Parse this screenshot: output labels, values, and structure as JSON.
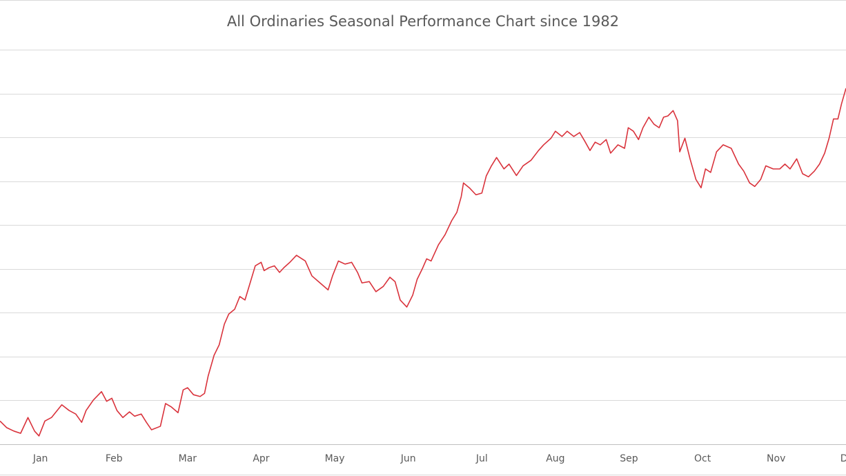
{
  "chart_data": {
    "type": "line",
    "title": "All Ordinaries Seasonal Performance Chart since 1982",
    "color": "#d9323b",
    "grid": true,
    "ytick_labels": false,
    "xlim": [
      -0.05,
      11.45
    ],
    "ylim": [
      0,
      9
    ],
    "yticks": [
      0,
      1,
      2,
      3,
      4,
      5,
      6,
      7,
      8,
      9
    ],
    "xticks": [
      {
        "value": 0.5,
        "label": "Jan"
      },
      {
        "value": 1.5,
        "label": "Feb"
      },
      {
        "value": 2.5,
        "label": "Mar"
      },
      {
        "value": 3.5,
        "label": "Apr"
      },
      {
        "value": 4.5,
        "label": "May"
      },
      {
        "value": 5.5,
        "label": "Jun"
      },
      {
        "value": 6.5,
        "label": "Jul"
      },
      {
        "value": 7.5,
        "label": "Aug"
      },
      {
        "value": 8.5,
        "label": "Sep"
      },
      {
        "value": 9.5,
        "label": "Oct"
      },
      {
        "value": 10.5,
        "label": "Nov"
      },
      {
        "value": 11.5,
        "label": "Dec"
      }
    ],
    "x": [
      -0.05,
      0.04,
      0.14,
      0.23,
      0.33,
      0.42,
      0.48,
      0.56,
      0.65,
      0.79,
      0.89,
      0.98,
      1.06,
      1.12,
      1.22,
      1.33,
      1.4,
      1.47,
      1.54,
      1.62,
      1.71,
      1.78,
      1.87,
      1.94,
      2.01,
      2.13,
      2.2,
      2.28,
      2.37,
      2.44,
      2.5,
      2.58,
      2.67,
      2.73,
      2.78,
      2.86,
      2.93,
      3.0,
      3.06,
      3.14,
      3.21,
      3.28,
      3.35,
      3.42,
      3.5,
      3.54,
      3.61,
      3.68,
      3.75,
      3.81,
      3.89,
      3.98,
      4.1,
      4.19,
      4.28,
      4.41,
      4.47,
      4.55,
      4.64,
      4.73,
      4.81,
      4.87,
      4.97,
      5.06,
      5.16,
      5.25,
      5.32,
      5.39,
      5.48,
      5.56,
      5.62,
      5.69,
      5.75,
      5.81,
      5.91,
      6.0,
      6.09,
      6.16,
      6.22,
      6.25,
      6.33,
      6.42,
      6.5,
      6.56,
      6.63,
      6.7,
      6.8,
      6.87,
      6.97,
      7.06,
      7.17,
      7.27,
      7.34,
      7.44,
      7.5,
      7.59,
      7.66,
      7.75,
      7.83,
      7.9,
      7.97,
      8.04,
      8.11,
      8.19,
      8.25,
      8.35,
      8.44,
      8.49,
      8.56,
      8.63,
      8.69,
      8.77,
      8.84,
      8.91,
      8.97,
      9.03,
      9.1,
      9.16,
      9.19,
      9.26,
      9.33,
      9.41,
      9.48,
      9.54,
      9.61,
      9.69,
      9.78,
      9.89,
      9.99,
      10.06,
      10.14,
      10.21,
      10.29,
      10.36,
      10.46,
      10.55,
      10.62,
      10.69,
      10.78,
      10.86,
      10.94,
      11.02,
      11.09,
      11.16,
      11.22,
      11.28,
      11.34,
      11.39,
      11.45
    ],
    "values": [
      0.53,
      0.38,
      0.3,
      0.25,
      0.61,
      0.3,
      0.19,
      0.53,
      0.61,
      0.9,
      0.77,
      0.69,
      0.5,
      0.77,
      1.01,
      1.2,
      0.98,
      1.05,
      0.77,
      0.61,
      0.74,
      0.64,
      0.69,
      0.5,
      0.33,
      0.41,
      0.93,
      0.85,
      0.72,
      1.24,
      1.29,
      1.13,
      1.09,
      1.16,
      1.56,
      2.03,
      2.27,
      2.74,
      2.97,
      3.08,
      3.37,
      3.29,
      3.68,
      4.07,
      4.15,
      3.96,
      4.03,
      4.07,
      3.92,
      4.03,
      4.15,
      4.31,
      4.18,
      3.84,
      3.71,
      3.52,
      3.84,
      4.18,
      4.11,
      4.15,
      3.92,
      3.68,
      3.71,
      3.48,
      3.6,
      3.81,
      3.71,
      3.29,
      3.13,
      3.4,
      3.76,
      4.0,
      4.23,
      4.18,
      4.55,
      4.78,
      5.1,
      5.29,
      5.65,
      5.96,
      5.85,
      5.69,
      5.73,
      6.12,
      6.35,
      6.54,
      6.28,
      6.39,
      6.13,
      6.35,
      6.48,
      6.7,
      6.83,
      6.98,
      7.14,
      7.02,
      7.14,
      7.02,
      7.11,
      6.91,
      6.7,
      6.89,
      6.83,
      6.95,
      6.64,
      6.83,
      6.75,
      7.22,
      7.14,
      6.95,
      7.22,
      7.46,
      7.3,
      7.22,
      7.46,
      7.49,
      7.61,
      7.38,
      6.67,
      6.98,
      6.51,
      6.04,
      5.85,
      6.28,
      6.2,
      6.67,
      6.83,
      6.75,
      6.39,
      6.23,
      5.96,
      5.88,
      6.04,
      6.35,
      6.28,
      6.28,
      6.39,
      6.28,
      6.51,
      6.17,
      6.1,
      6.23,
      6.39,
      6.64,
      6.98,
      7.42,
      7.42,
      7.77,
      8.12
    ]
  }
}
